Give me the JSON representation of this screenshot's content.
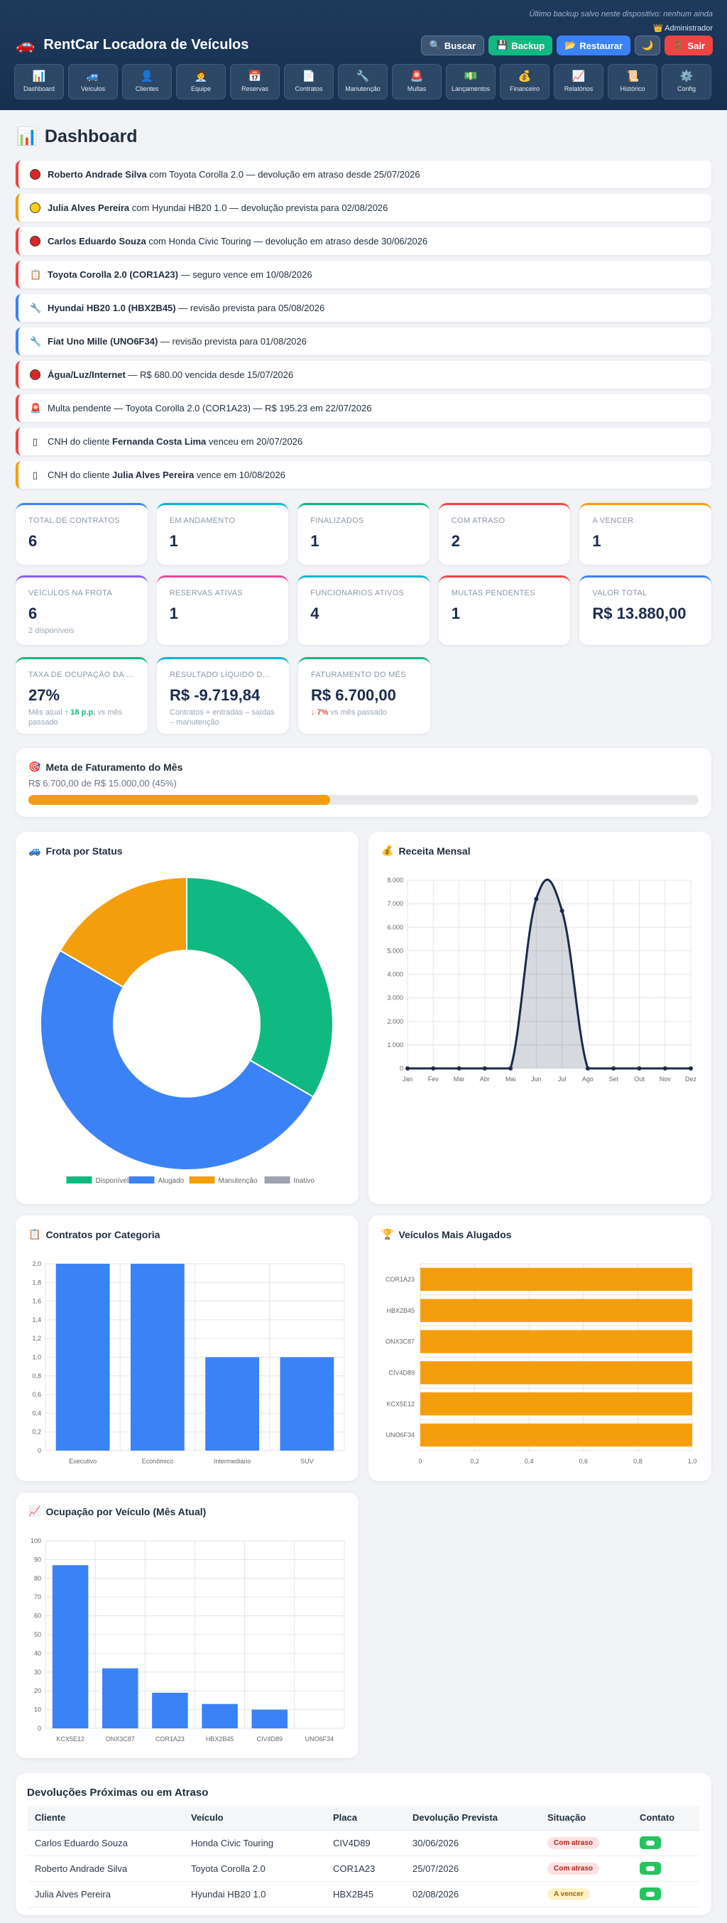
{
  "header": {
    "backup_note": "Último backup salvo neste dispositivo: nenhum ainda",
    "admin": "👑 Administrador",
    "app_icon": "car-icon",
    "app_title": "RentCar Locadora de Veículos",
    "buttons": {
      "search": "Buscar",
      "backup": "Backup",
      "restore": "Restaurar",
      "logout": "Sair"
    }
  },
  "nav": [
    {
      "icon": "📊",
      "label": "Dashboard"
    },
    {
      "icon": "🚙",
      "label": "Veículos"
    },
    {
      "icon": "👤",
      "label": "Clientes"
    },
    {
      "icon": "🧑‍💼",
      "label": "Equipe"
    },
    {
      "icon": "📅",
      "label": "Reservas"
    },
    {
      "icon": "📄",
      "label": "Contratos"
    },
    {
      "icon": "🔧",
      "label": "Manutenção"
    },
    {
      "icon": "🚨",
      "label": "Multas"
    },
    {
      "icon": "💵",
      "label": "Lançamentos"
    },
    {
      "icon": "💰",
      "label": "Financeiro"
    },
    {
      "icon": "📈",
      "label": "Relatórios"
    },
    {
      "icon": "📜",
      "label": "Histórico"
    },
    {
      "icon": "⚙️",
      "label": "Config"
    }
  ],
  "page": {
    "icon": "📊",
    "title": "Dashboard"
  },
  "alerts": [
    {
      "color": "red",
      "icon": "dot-red",
      "bold": "Roberto Andrade Silva",
      "text": " com Toyota Corolla 2.0 — devolução em atraso desde 25/07/2026"
    },
    {
      "color": "yellow",
      "icon": "dot-yellow",
      "bold": "Julia Alves Pereira",
      "text": " com Hyundai HB20 1.0 — devolução prevista para 02/08/2026"
    },
    {
      "color": "red",
      "icon": "dot-red",
      "bold": "Carlos Eduardo Souza",
      "text": " com Honda Civic Touring — devolução em atraso desde 30/06/2026"
    },
    {
      "color": "red",
      "icon": "📋",
      "bold": "Toyota Corolla 2.0 (COR1A23)",
      "text": " — seguro vence em 10/08/2026"
    },
    {
      "color": "blue",
      "icon": "🔧",
      "bold": "Hyundai HB20 1.0 (HBX2B45)",
      "text": " — revisão prevista para 05/08/2026"
    },
    {
      "color": "blue",
      "icon": "🔧",
      "bold": "Fiat Uno Mille (UNO6F34)",
      "text": " — revisão prevista para 01/08/2026"
    },
    {
      "color": "red",
      "icon": "dot-red",
      "bold": "Água/Luz/Internet",
      "text": " — R$ 680.00 vencida desde 15/07/2026"
    },
    {
      "color": "red",
      "icon": "🚨",
      "bold": "",
      "text": "Multa pendente — Toyota Corolla 2.0 (COR1A23) — R$ 195.23 em 22/07/2026"
    },
    {
      "color": "red",
      "icon": "▯",
      "bold": "Fernanda Costa Lima",
      "pre": "CNH do cliente ",
      "text": " venceu em 20/07/2026"
    },
    {
      "color": "yellow",
      "icon": "▯",
      "bold": "Julia Alves Pereira",
      "pre": "CNH do cliente ",
      "text": " vence em 10/08/2026"
    }
  ],
  "cards_row1": [
    {
      "label": "Total de Contratos",
      "value": "6",
      "color": "#3b82f6"
    },
    {
      "label": "Em Andamento",
      "value": "1",
      "color": "#06b6d4"
    },
    {
      "label": "Finalizados",
      "value": "1",
      "color": "#10b981"
    },
    {
      "label": "Com Atraso",
      "value": "2",
      "color": "#ef4444"
    },
    {
      "label": "A Vencer",
      "value": "1",
      "color": "#f59e0b"
    }
  ],
  "cards_row2": [
    {
      "label": "Veículos na Frota",
      "value": "6",
      "sub": "2 disponíveis",
      "color": "#8b5cf6"
    },
    {
      "label": "Reservas Ativas",
      "value": "1",
      "color": "#ec4899"
    },
    {
      "label": "Funcionários Ativos",
      "value": "4",
      "color": "#06b6d4"
    },
    {
      "label": "Multas Pendentes",
      "value": "1",
      "color": "#ef4444"
    },
    {
      "label": "Valor Total",
      "value": "R$ 13.880,00",
      "color": "#3b82f6"
    }
  ],
  "cards_row3": [
    {
      "label": "Taxa de Ocupação da Frota",
      "value": "27%",
      "sub_pre": "Mês atual ",
      "sub_hl": "↑ 18 p.p.",
      "sub_post": " vs mês passado",
      "color": "#10b981"
    },
    {
      "label": "Resultado Líquido do Mês",
      "value": "R$ -9.719,84",
      "sub": "Contratos + entradas – saídas – manutenção",
      "color": "#06b6d4"
    },
    {
      "label": "Faturamento do Mês",
      "value": "R$ 6.700,00",
      "sub_hl": "↓ 7%",
      "sub_post": " vs mês passado",
      "color": "#10b981"
    }
  ],
  "goal": {
    "icon": "🎯",
    "title": "Meta de Faturamento do Mês",
    "text": "R$ 6.700,00 de R$ 15.000,00 (45%)",
    "progress": 0.45
  },
  "fleet_panel": {
    "icon": "🚙",
    "title": "Frota por Status"
  },
  "revenue_panel": {
    "icon": "💰",
    "title": "Receita Mensal"
  },
  "contracts_panel": {
    "icon": "📋",
    "title": "Contratos por Categoria"
  },
  "top_panel": {
    "icon": "🏆",
    "title": "Veículos Mais Alugados"
  },
  "occupancy_panel": {
    "icon": "📈",
    "title": "Ocupação por Veículo (Mês Atual)"
  },
  "chart_data": [
    {
      "type": "pie",
      "title": "Frota por Status",
      "categories": [
        "Disponível",
        "Alugado",
        "Manutenção",
        "Inativo"
      ],
      "values": [
        2,
        3,
        1,
        0
      ],
      "colors": [
        "#10b981",
        "#3b82f6",
        "#f59e0b",
        "#9ca3af"
      ],
      "legend": "bottom"
    },
    {
      "type": "area",
      "title": "Receita Mensal",
      "categories": [
        "Jan",
        "Fev",
        "Mar",
        "Abr",
        "Mai",
        "Jun",
        "Jul",
        "Ago",
        "Set",
        "Out",
        "Nov",
        "Dez"
      ],
      "values": [
        0,
        0,
        0,
        0,
        0,
        7200,
        6700,
        0,
        0,
        0,
        0,
        0
      ],
      "ylim": [
        0,
        8000
      ],
      "yticks": [
        "0",
        "1.000",
        "2.000",
        "3.000",
        "4.000",
        "5.000",
        "6.000",
        "7.000",
        "8.000"
      ],
      "grid": true
    },
    {
      "type": "bar",
      "title": "Contratos por Categoria",
      "categories": [
        "Executivo",
        "Econômico",
        "Intermediário",
        "SUV"
      ],
      "values": [
        2,
        2,
        1,
        1
      ],
      "ylim": [
        0,
        2
      ],
      "yticks": [
        "0",
        "0,2",
        "0,4",
        "0,6",
        "0,8",
        "1,0",
        "1,2",
        "1,4",
        "1,6",
        "1,8",
        "2,0"
      ],
      "grid": true
    },
    {
      "type": "bar",
      "orientation": "horizontal",
      "title": "Veículos Mais Alugados",
      "categories": [
        "COR1A23",
        "HBX2B45",
        "ONX3C87",
        "CIV4D89",
        "KCX5E12",
        "UNO6F34"
      ],
      "values": [
        1,
        1,
        1,
        1,
        1,
        1
      ],
      "xlim": [
        0,
        1
      ],
      "xticks": [
        "0",
        "0,2",
        "0,4",
        "0,6",
        "0,8",
        "1,0"
      ],
      "grid": true
    },
    {
      "type": "bar",
      "title": "Ocupação por Veículo (Mês Atual)",
      "categories": [
        "KCX5E12",
        "ONX3C87",
        "COR1A23",
        "HBX2B45",
        "CIV4D89",
        "UNO6F34"
      ],
      "values": [
        87,
        32,
        19,
        13,
        10,
        0
      ],
      "ylim": [
        0,
        100
      ],
      "yticks": [
        "0",
        "10",
        "20",
        "30",
        "40",
        "50",
        "60",
        "70",
        "80",
        "90",
        "100"
      ],
      "grid": true
    }
  ],
  "returns": {
    "title": "Devoluções Próximas ou em Atraso",
    "columns": [
      "Cliente",
      "Veículo",
      "Placa",
      "Devolução Prevista",
      "Situação",
      "Contato"
    ],
    "rows": [
      {
        "client": "Carlos Eduardo Souza",
        "vehicle": "Honda Civic Touring",
        "plate": "CIV4D89",
        "date": "30/06/2026",
        "status": "Com atraso",
        "status_type": "late"
      },
      {
        "client": "Roberto Andrade Silva",
        "vehicle": "Toyota Corolla 2.0",
        "plate": "COR1A23",
        "date": "25/07/2026",
        "status": "Com atraso",
        "status_type": "late"
      },
      {
        "client": "Julia Alves Pereira",
        "vehicle": "Hyundai HB20 1.0",
        "plate": "HBX2B45",
        "date": "02/08/2026",
        "status": "A vencer",
        "status_type": "due"
      }
    ]
  }
}
